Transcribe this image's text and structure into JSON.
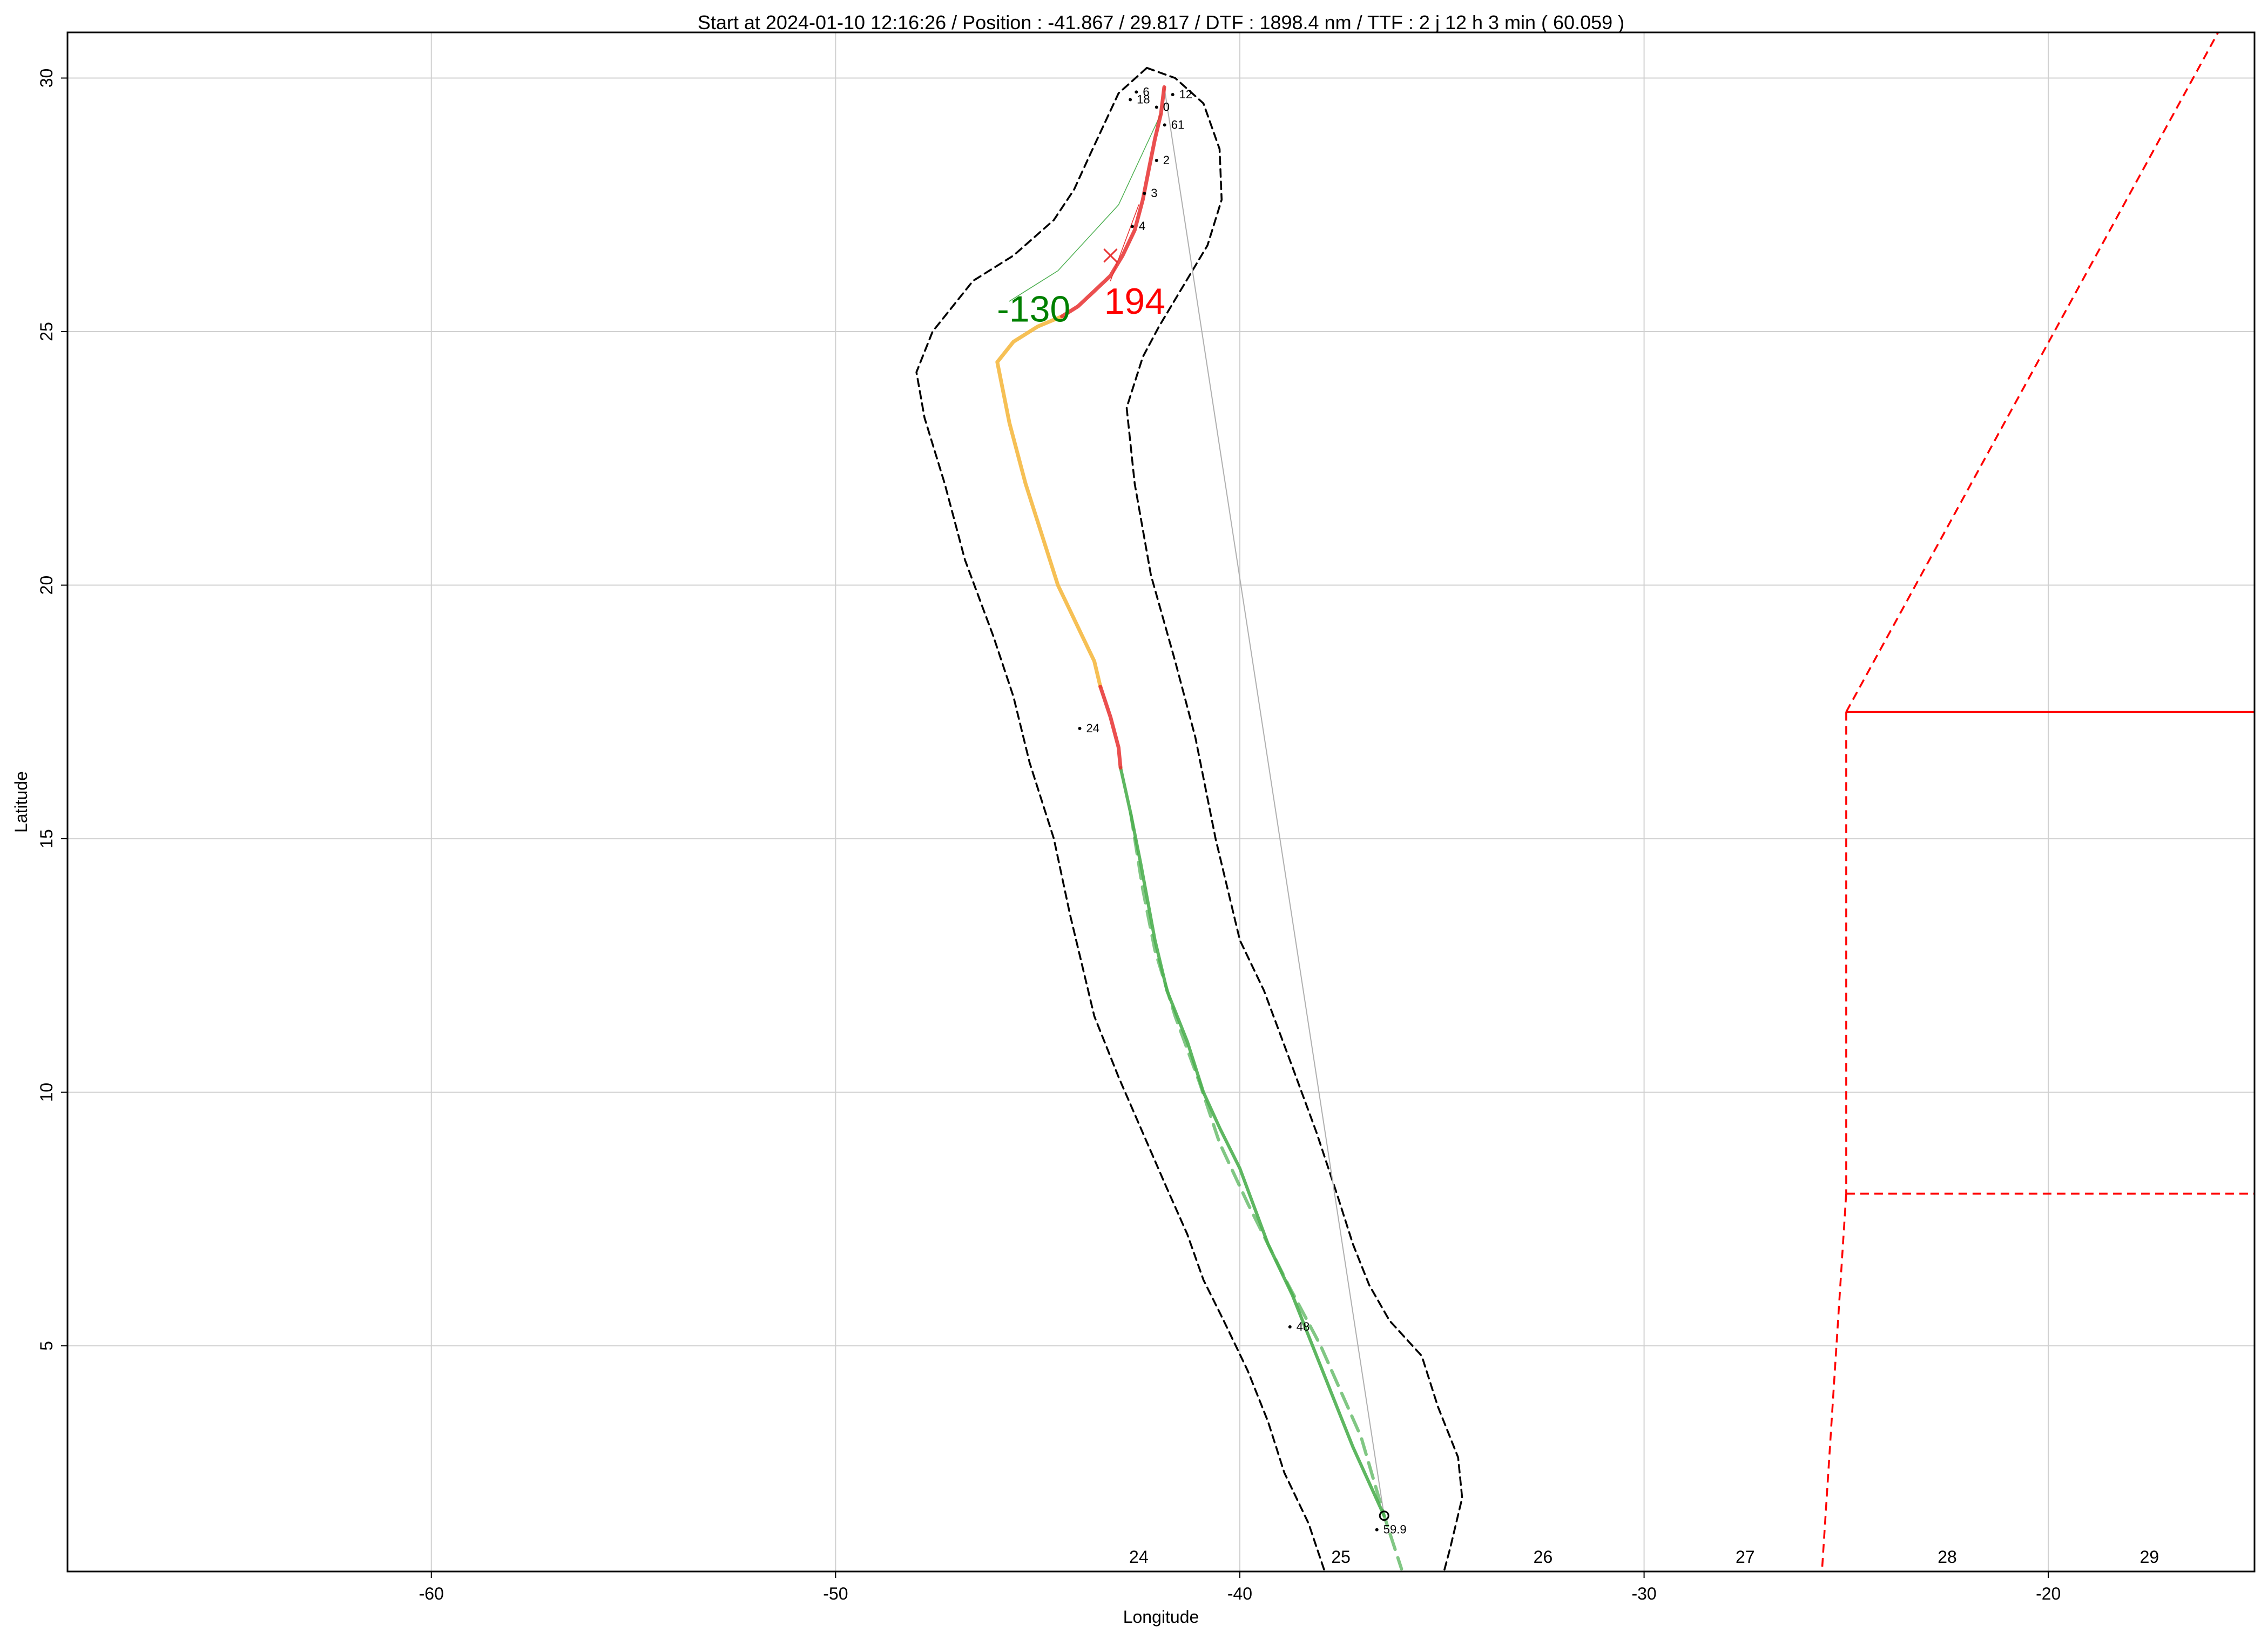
{
  "chart_data": {
    "type": "line",
    "title": "Start at 2024-01-10 12:16:26 / Position : -41.867 / 29.817 / DTF : 1898.4 nm / TTF : 2 j 12 h 3 min ( 60.059 )",
    "xlabel": "Longitude",
    "ylabel": "Latitude",
    "xlim": [
      -69.0,
      -14.9
    ],
    "ylim": [
      0.55,
      30.9
    ],
    "xticks": [
      -60,
      -50,
      -40,
      -30,
      -20
    ],
    "xtick_labels": [
      "-60",
      "-50",
      "-40",
      "-30",
      "-20"
    ],
    "yticks": [
      5,
      10,
      15,
      20,
      25,
      30
    ],
    "ytick_labels": [
      "5",
      "10",
      "15",
      "20",
      "25",
      "30"
    ],
    "grid": true,
    "colors": {
      "route_red": "#e83030",
      "route_orange": "#f5b942",
      "route_green": "#4caf50",
      "envelope": "#000000",
      "zone": "#ff0000",
      "annotation_green": "#008000",
      "annotation_red": "#ff0000",
      "thin_line": "#b0b0b0"
    },
    "series": [
      {
        "segment": "red-start",
        "x": [
          -41.87,
          -41.95,
          -42.1,
          -42.25,
          -42.4,
          -42.6,
          -42.9,
          -43.2,
          -43.6,
          -44.0,
          -44.4
        ],
        "y": [
          29.82,
          29.3,
          28.8,
          28.2,
          27.6,
          27.0,
          26.5,
          26.1,
          25.8,
          25.5,
          25.3
        ]
      },
      {
        "segment": "orange",
        "x": [
          -44.4,
          -45.0,
          -45.6,
          -46.0,
          -45.7,
          -45.3,
          -44.9,
          -44.5,
          -44.2,
          -43.9,
          -43.6,
          -43.45
        ],
        "y": [
          25.3,
          25.1,
          24.8,
          24.4,
          23.2,
          22.0,
          21.0,
          20.0,
          19.5,
          19.0,
          18.5,
          18.0
        ]
      },
      {
        "segment": "red-mid",
        "x": [
          -43.45,
          -43.2,
          -43.0,
          -42.95
        ],
        "y": [
          18.0,
          17.4,
          16.8,
          16.4
        ]
      },
      {
        "segment": "green",
        "x": [
          -42.95,
          -42.7,
          -42.45,
          -42.1,
          -41.8,
          -41.3,
          -40.9,
          -40.5,
          -40.0,
          -39.3,
          -38.7,
          -38.3,
          -37.9,
          -37.5,
          -37.2,
          -36.8,
          -36.43
        ],
        "y": [
          16.4,
          15.5,
          14.5,
          13.0,
          12.0,
          11.0,
          10.0,
          9.3,
          8.5,
          7.0,
          6.0,
          5.2,
          4.4,
          3.6,
          3.0,
          2.3,
          1.65
        ]
      },
      {
        "segment": "green-dashed",
        "x": [
          -42.7,
          -42.4,
          -42.1,
          -41.6,
          -41.0,
          -40.5,
          -39.8,
          -38.8,
          -38.0,
          -37.0,
          -36.43,
          -36.0
        ],
        "y": [
          15.5,
          14.0,
          12.8,
          11.5,
          10.2,
          9.0,
          7.8,
          6.2,
          5.0,
          3.2,
          1.65,
          0.6
        ]
      },
      {
        "segment": "envelope-outer",
        "x": [
          -42.3,
          -41.6,
          -40.9,
          -40.5,
          -40.45,
          -40.8,
          -41.4,
          -42.0,
          -42.4,
          -42.8,
          -42.6,
          -42.2,
          -41.6,
          -41.1,
          -40.6,
          -40.0,
          -39.4,
          -38.7,
          -38.1,
          -37.6,
          -37.2,
          -36.8,
          -36.3,
          -35.5,
          -35.1,
          -34.6,
          -34.5,
          -34.8,
          -34.95
        ],
        "y": [
          30.2,
          30.0,
          29.5,
          28.6,
          27.6,
          26.7,
          25.9,
          25.1,
          24.5,
          23.5,
          22.0,
          20.2,
          18.5,
          17.0,
          15.0,
          13.0,
          12.0,
          10.5,
          9.2,
          8.0,
          7.0,
          6.2,
          5.5,
          4.8,
          3.8,
          2.8,
          2.0,
          1.0,
          0.55
        ]
      },
      {
        "segment": "envelope-inner",
        "x": [
          -42.3,
          -43.0,
          -43.7,
          -44.1,
          -44.6,
          -45.6,
          -46.6,
          -47.6,
          -48.0,
          -47.8,
          -47.3,
          -46.8,
          -46.1,
          -45.6,
          -45.2,
          -44.6,
          -44.2,
          -43.6,
          -43.0,
          -42.4,
          -41.8,
          -41.3,
          -40.9,
          -40.4,
          -39.8,
          -39.3,
          -38.9,
          -38.3,
          -37.9
        ],
        "y": [
          30.2,
          29.7,
          28.5,
          27.8,
          27.2,
          26.5,
          26.0,
          25.0,
          24.2,
          23.3,
          22.0,
          20.5,
          19.0,
          17.8,
          16.5,
          15.0,
          13.5,
          11.5,
          10.3,
          9.2,
          8.1,
          7.2,
          6.3,
          5.5,
          4.5,
          3.5,
          2.5,
          1.5,
          0.55
        ]
      },
      {
        "segment": "thin-grey",
        "x": [
          -41.87,
          -36.43
        ],
        "y": [
          29.82,
          1.65
        ]
      },
      {
        "segment": "thin-green",
        "x": [
          -41.95,
          -43.0,
          -44.5,
          -45.7
        ],
        "y": [
          29.3,
          27.5,
          26.2,
          25.6
        ]
      },
      {
        "segment": "thin-red",
        "x": [
          -42.5,
          -43.2
        ],
        "y": [
          27.5,
          26.0
        ]
      }
    ],
    "zone_lines": [
      {
        "style": "dashed",
        "x": [
          -25.0,
          -15.8
        ],
        "y": [
          17.5,
          30.9
        ]
      },
      {
        "style": "solid",
        "x": [
          -25.0,
          -14.9
        ],
        "y": [
          17.5,
          17.5
        ]
      },
      {
        "style": "dashed",
        "x": [
          -25.0,
          -25.0
        ],
        "y": [
          17.5,
          8.0
        ]
      },
      {
        "style": "dashed",
        "x": [
          -25.0,
          -14.9
        ],
        "y": [
          8.0,
          8.0
        ]
      },
      {
        "style": "dashed",
        "x": [
          -25.0,
          -25.6
        ],
        "y": [
          8.0,
          0.55
        ]
      }
    ],
    "hour_labels": [
      {
        "text": "6",
        "x": -42.4,
        "y": 29.65
      },
      {
        "text": "18",
        "x": -42.55,
        "y": 29.5
      },
      {
        "text": "0",
        "x": -41.9,
        "y": 29.35
      },
      {
        "text": "12",
        "x": -41.5,
        "y": 29.6
      },
      {
        "text": "61",
        "x": -41.7,
        "y": 29.0
      },
      {
        "text": "2",
        "x": -41.9,
        "y": 28.3
      },
      {
        "text": "3",
        "x": -42.2,
        "y": 27.65
      },
      {
        "text": "4",
        "x": -42.5,
        "y": 27.0
      },
      {
        "text": "24",
        "x": -43.8,
        "y": 17.1
      },
      {
        "text": "48",
        "x": -38.6,
        "y": 5.3
      },
      {
        "text": "59.9",
        "x": -36.45,
        "y": 1.3
      }
    ],
    "day_labels": [
      {
        "text": "24",
        "x": -42.5
      },
      {
        "text": "25",
        "x": -37.5
      },
      {
        "text": "26",
        "x": -32.5
      },
      {
        "text": "27",
        "x": -27.5
      },
      {
        "text": "28",
        "x": -22.5
      },
      {
        "text": "29",
        "x": -17.5
      }
    ],
    "big_labels": [
      {
        "text": "-130",
        "x": -45.1,
        "y": 25.2,
        "color": "#008000"
      },
      {
        "text": "194",
        "x": -42.6,
        "y": 25.35,
        "color": "#ff0000"
      }
    ],
    "markers": [
      {
        "kind": "cross",
        "x": -43.2,
        "y": 26.5
      },
      {
        "kind": "circle",
        "x": -36.43,
        "y": 1.65
      }
    ]
  }
}
